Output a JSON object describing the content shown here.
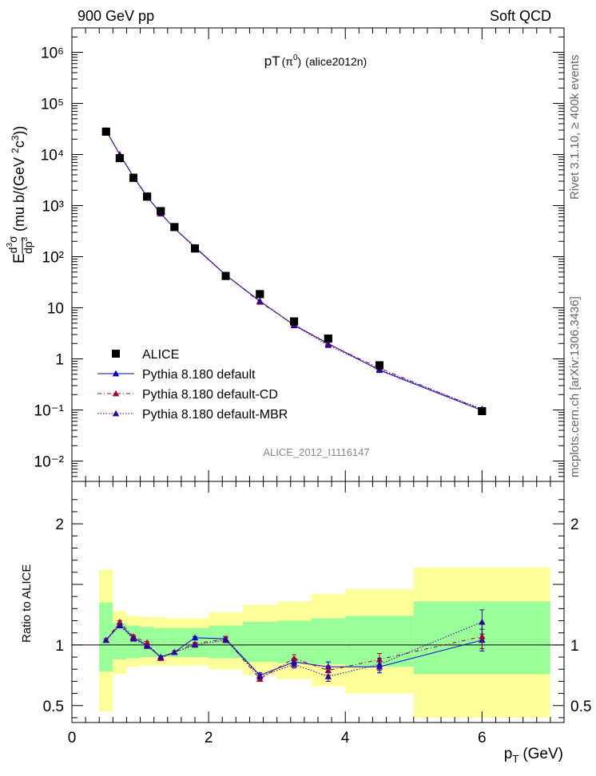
{
  "header": {
    "left_label": "900 GeV pp",
    "right_label": "Soft QCD"
  },
  "side_labels": {
    "right_top": "Rivet 3.1.10, ≥ 400k events",
    "right_bottom": "mcplots.cern.ch [arXiv:1306.3436]"
  },
  "colors": {
    "data": "#000000",
    "mc_default": "#0000cc",
    "mc_cd": "#aa0033",
    "mc_mbr": "#330099",
    "band_green": "#99ff99",
    "band_yellow": "#ffff99"
  },
  "chart_data": [
    {
      "type": "scatter",
      "title": "pT(π⁰) (alice2012n)",
      "title_main": "pT",
      "title_particle": "(π",
      "title_particle_sup": "0",
      "title_particle_close": ")",
      "title_tag": "(alice2012n)",
      "analysis_id": "ALICE_2012_I1116147",
      "ylabel": "E d³σ/dp³ (mu b/(GeV²c³))",
      "yscale": "log",
      "ylim": [
        0.004,
        3000000
      ],
      "xlim": [
        0,
        7.2
      ],
      "ytick_labels": [
        "10⁻²",
        "10⁻¹",
        "1",
        "10",
        "10²",
        "10³",
        "10⁴",
        "10⁵",
        "10⁶"
      ],
      "ytick_values": [
        0.01,
        0.1,
        1,
        10,
        100,
        1000,
        10000,
        100000,
        1000000
      ],
      "legend_position": "lower-left",
      "x": [
        0.5,
        0.7,
        0.9,
        1.1,
        1.3,
        1.5,
        1.8,
        2.25,
        2.75,
        3.25,
        3.75,
        4.5,
        6.0
      ],
      "series": [
        {
          "name": "ALICE",
          "style": "data-square",
          "values": [
            28000,
            8500,
            3500,
            1500,
            780,
            380,
            145,
            42,
            18.5,
            5.4,
            2.5,
            0.75,
            0.095
          ]
        },
        {
          "name": "Pythia 8.180 default",
          "style": "line-solid",
          "values": [
            29500,
            10000,
            3700,
            1500,
            700,
            360,
            155,
            44,
            13.5,
            4.6,
            2.0,
            0.6,
            0.098
          ]
        },
        {
          "name": "Pythia 8.180 default-CD",
          "style": "line-dashdot",
          "values": [
            29600,
            10100,
            3700,
            1530,
            690,
            362,
            152,
            44,
            13.0,
            4.7,
            1.95,
            0.66,
            0.1
          ]
        },
        {
          "name": "Pythia 8.180 default-MBR",
          "style": "line-dotted",
          "values": [
            29200,
            9900,
            3680,
            1490,
            700,
            360,
            150,
            43.5,
            13.6,
            4.5,
            1.85,
            0.62,
            0.105
          ]
        }
      ]
    },
    {
      "type": "scatter",
      "title": "",
      "xlabel": "p_T (GeV)",
      "xlabel_main": "p",
      "xlabel_sub": "T",
      "xlabel_unit": "(GeV)",
      "ylabel": "Ratio to ALICE",
      "ylim": [
        0.36,
        2.35
      ],
      "xlim": [
        0,
        7.2
      ],
      "xtick_labels": [
        "0",
        "2",
        "4",
        "6"
      ],
      "xtick_values": [
        0,
        2,
        4,
        6
      ],
      "ytick_labels": [
        "0.5",
        "1",
        "2"
      ],
      "ytick_values": [
        0.5,
        1,
        2
      ],
      "x": [
        0.5,
        0.7,
        0.9,
        1.1,
        1.3,
        1.5,
        1.8,
        2.25,
        2.75,
        3.25,
        3.75,
        4.5,
        6.0
      ],
      "bins": [
        [
          0.4,
          0.6
        ],
        [
          0.6,
          0.8
        ],
        [
          0.8,
          1.0
        ],
        [
          1.0,
          1.2
        ],
        [
          1.2,
          1.4
        ],
        [
          1.4,
          1.6
        ],
        [
          1.6,
          2.0
        ],
        [
          2.0,
          2.5
        ],
        [
          2.5,
          3.0
        ],
        [
          3.0,
          3.5
        ],
        [
          3.5,
          4.0
        ],
        [
          4.0,
          5.0
        ],
        [
          5.0,
          7.0
        ]
      ],
      "band_green": [
        [
          0.78,
          1.35
        ],
        [
          0.88,
          1.18
        ],
        [
          0.89,
          1.16
        ],
        [
          0.9,
          1.15
        ],
        [
          0.9,
          1.14
        ],
        [
          0.9,
          1.14
        ],
        [
          0.9,
          1.14
        ],
        [
          0.89,
          1.16
        ],
        [
          0.86,
          1.19
        ],
        [
          0.85,
          1.2
        ],
        [
          0.84,
          1.22
        ],
        [
          0.82,
          1.24
        ],
        [
          0.76,
          1.36
        ]
      ],
      "band_yellow": [
        [
          0.45,
          1.62
        ],
        [
          0.76,
          1.28
        ],
        [
          0.82,
          1.24
        ],
        [
          0.83,
          1.23
        ],
        [
          0.83,
          1.23
        ],
        [
          0.83,
          1.22
        ],
        [
          0.83,
          1.22
        ],
        [
          0.8,
          1.27
        ],
        [
          0.75,
          1.33
        ],
        [
          0.72,
          1.36
        ],
        [
          0.66,
          1.42
        ],
        [
          0.6,
          1.46
        ],
        [
          0.4,
          1.64
        ]
      ],
      "series": [
        {
          "name": "Pythia 8.180 default",
          "style": "line-solid",
          "values": [
            1.04,
            1.17,
            1.06,
            1.0,
            0.9,
            0.94,
            1.06,
            1.05,
            0.75,
            0.86,
            0.82,
            0.82,
            1.04
          ],
          "errors": [
            0.01,
            0.01,
            0.01,
            0.01,
            0.01,
            0.01,
            0.01,
            0.02,
            0.02,
            0.03,
            0.04,
            0.05,
            0.09
          ]
        },
        {
          "name": "Pythia 8.180 default-CD",
          "style": "line-dashdot",
          "values": [
            1.04,
            1.19,
            1.07,
            1.02,
            0.89,
            0.94,
            1.01,
            1.05,
            0.72,
            0.89,
            0.79,
            0.88,
            1.07
          ],
          "errors": [
            0.01,
            0.01,
            0.01,
            0.01,
            0.01,
            0.01,
            0.01,
            0.02,
            0.02,
            0.03,
            0.04,
            0.05,
            0.1
          ]
        },
        {
          "name": "Pythia 8.180 default-MBR",
          "style": "line-dotted",
          "values": [
            1.04,
            1.16,
            1.05,
            0.99,
            0.9,
            0.94,
            1.0,
            1.04,
            0.74,
            0.84,
            0.74,
            0.84,
            1.19
          ],
          "errors": [
            0.01,
            0.01,
            0.01,
            0.01,
            0.01,
            0.01,
            0.01,
            0.02,
            0.02,
            0.03,
            0.04,
            0.05,
            0.1
          ]
        }
      ]
    }
  ]
}
